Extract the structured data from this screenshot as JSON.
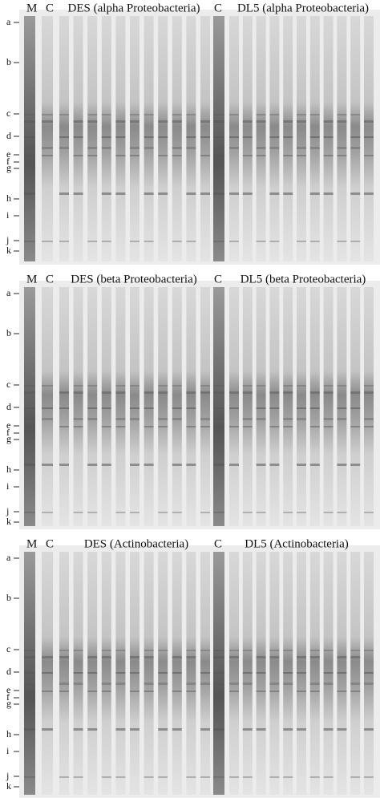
{
  "panels": [
    {
      "headers": {
        "marker": "M",
        "control1": "C",
        "group1": "DES (alpha Proteobacteria)",
        "control2": "C",
        "group2": "DL5 (alpha Proteobacteria)"
      },
      "band_labels": [
        "a",
        "b",
        "c",
        "d",
        "e",
        "f",
        "g",
        "h",
        "i",
        "j",
        "k"
      ]
    },
    {
      "headers": {
        "marker": "M",
        "control1": "C",
        "group1": "DES (beta Proteobacteria)",
        "control2": "C",
        "group2": "DL5 (beta Proteobacteria)"
      },
      "band_labels": [
        "a",
        "b",
        "c",
        "d",
        "e",
        "f",
        "g",
        "h",
        "i",
        "j",
        "k"
      ]
    },
    {
      "headers": {
        "marker": "M",
        "control1": "C",
        "group1": "DES (Actinobacteria)",
        "control2": "C",
        "group2": "DL5 (Actinobacteria)"
      },
      "band_labels": [
        "a",
        "b",
        "c",
        "d",
        "e",
        "f",
        "g",
        "h",
        "i",
        "j",
        "k"
      ]
    }
  ]
}
